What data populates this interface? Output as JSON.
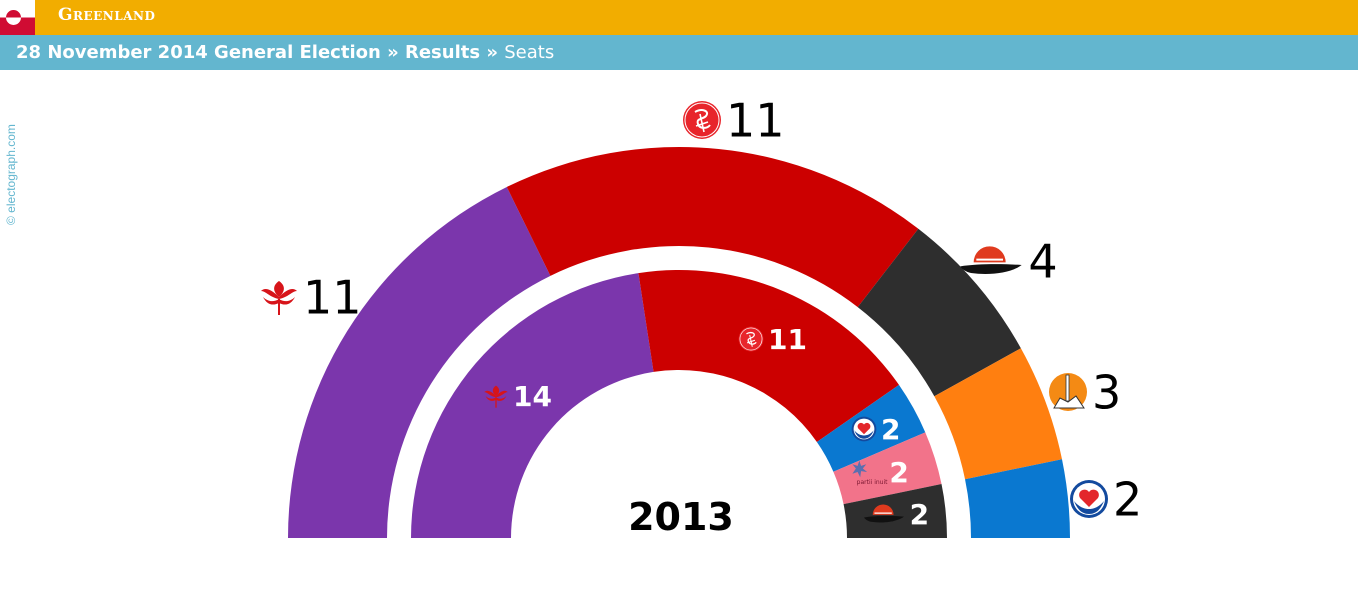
{
  "header": {
    "country": "Greenland",
    "breadcrumb": {
      "election": "28 November 2014 General Election",
      "sep1": " » ",
      "section": "Results",
      "sep2": " » ",
      "current": "Seats"
    },
    "credit": "© electograph.com"
  },
  "colors": {
    "topbar": "#f2ad00",
    "subbar": "#63b6cf",
    "flag_red": "#d00c33"
  },
  "chart_data": {
    "type": "pie",
    "subtype": "nested-semicircle",
    "rings": [
      {
        "name": "2014",
        "series": [
          {
            "party_icon": "siumut-icon",
            "seats": 11,
            "color": "#7b36ac"
          },
          {
            "party_icon": "inuit-ataqatigiit-icon",
            "seats": 11,
            "color": "#cc0000"
          },
          {
            "party_icon": "atassut-icon",
            "seats": 4,
            "color": "#2e2e2e"
          },
          {
            "party_icon": "partii-naleraq-icon",
            "seats": 3,
            "color": "#ff7f10"
          },
          {
            "party_icon": "demokraatit-icon",
            "seats": 2,
            "color": "#0a78d0"
          }
        ]
      },
      {
        "name": "2013",
        "label": "2013",
        "series": [
          {
            "party_icon": "siumut-icon",
            "seats": 14,
            "color": "#7b36ac"
          },
          {
            "party_icon": "inuit-ataqatigiit-icon",
            "seats": 11,
            "color": "#cc0000"
          },
          {
            "party_icon": "demokraatit-icon",
            "seats": 2,
            "color": "#0a78d0"
          },
          {
            "party_icon": "partii-inuit-icon",
            "seats": 2,
            "color": "#f2738a"
          },
          {
            "party_icon": "atassut-icon",
            "seats": 2,
            "color": "#2e2e2e"
          }
        ]
      }
    ],
    "icon_text": {
      "partii-inuit-icon": "partii inuit"
    }
  }
}
